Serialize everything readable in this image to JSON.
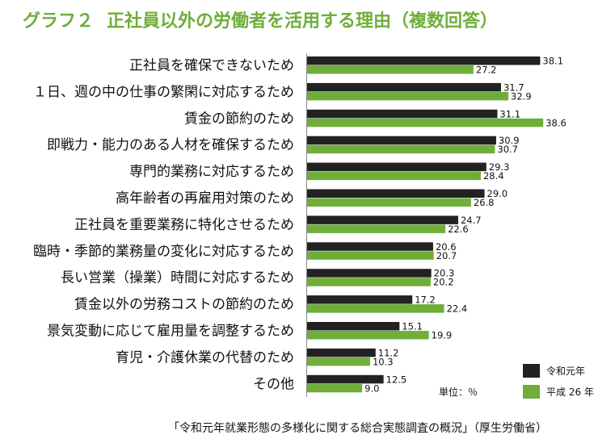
{
  "title": {
    "label": "グラフ２",
    "text": "正社員以外の労働者を活用する理由（複数回答）"
  },
  "chart_data": {
    "type": "bar",
    "orientation": "horizontal",
    "categories": [
      "正社員を確保できないため",
      "１日、週の中の仕事の繁閑に対応するため",
      "賃金の節約のため",
      "即戦力・能力のある人材を確保するため",
      "専門的業務に対応するため",
      "高年齢者の再雇用対策のため",
      "正社員を重要業務に特化させるため",
      "臨時・季節的業務量の変化に対応するため",
      "長い営業（操業）時間に対応するため",
      "賃金以外の労務コストの節約のため",
      "景気変動に応じて雇用量を調整するため",
      "育児・介護休業の代替のため",
      "その他"
    ],
    "series": [
      {
        "name": "令和元年",
        "color": "#222222",
        "values": [
          38.1,
          31.7,
          31.1,
          30.9,
          29.3,
          29.0,
          24.7,
          20.6,
          20.3,
          17.2,
          15.1,
          11.2,
          12.5
        ],
        "labels": [
          "38.1",
          "31.7",
          "31.1",
          "30.9",
          "29.3",
          "29.0",
          "24.7",
          "20.6",
          "20.3",
          "17.2",
          "15.1",
          "11.2",
          "12.5"
        ]
      },
      {
        "name": "平成 26 年",
        "color": "#6fae3a",
        "values": [
          27.2,
          32.9,
          38.6,
          30.7,
          28.4,
          26.8,
          22.6,
          20.7,
          20.2,
          22.4,
          19.9,
          10.3,
          9.0
        ],
        "labels": [
          "27.2",
          "32.9",
          "38.6",
          "30.7",
          "28.4",
          "26.8",
          "22.6",
          "20.7",
          "20.2",
          "22.4",
          "19.9",
          "10.3",
          "9.0"
        ]
      }
    ],
    "unit": "単位：％",
    "legend_position": "bottom-right",
    "grid": false
  },
  "source": "「令和元年就業形態の多様化に関する総合実態調査の概況」（厚生労働省）"
}
